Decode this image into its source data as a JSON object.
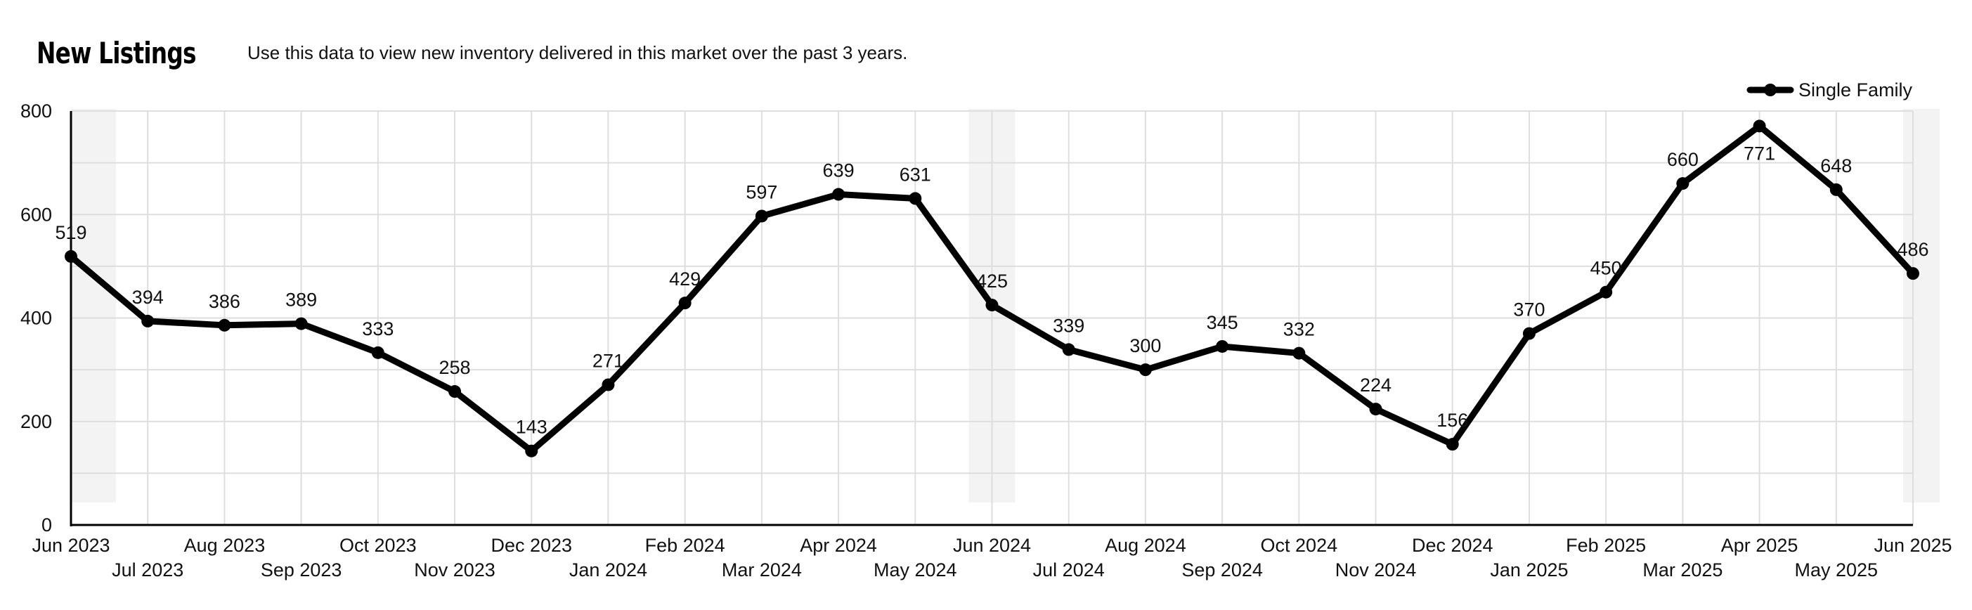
{
  "header": {
    "title": "New Listings",
    "subtitle": "Use this data to view new inventory delivered in this market over the past 3 years."
  },
  "legend": {
    "label": "Single Family"
  },
  "colors": {
    "line": "#000000",
    "grid": "#dedede",
    "highlight": "#f3f3f3"
  },
  "chart_data": {
    "type": "line",
    "title": "New Listings",
    "subtitle": "Use this data to view new inventory delivered in this market over the past 3 years.",
    "categories": [
      "Jun 2023",
      "Jul 2023",
      "Aug 2023",
      "Sep 2023",
      "Oct 2023",
      "Nov 2023",
      "Dec 2023",
      "Jan 2024",
      "Feb 2024",
      "Mar 2024",
      "Apr 2024",
      "May 2024",
      "Jun 2024",
      "Jul 2024",
      "Aug 2024",
      "Sep 2024",
      "Oct 2024",
      "Nov 2024",
      "Dec 2024",
      "Jan 2025",
      "Feb 2025",
      "Mar 2025",
      "Apr 2025",
      "May 2025",
      "Jun 2025"
    ],
    "series": [
      {
        "name": "Single Family",
        "values": [
          519,
          394,
          386,
          389,
          333,
          258,
          143,
          271,
          429,
          597,
          639,
          631,
          425,
          339,
          300,
          345,
          332,
          224,
          156,
          370,
          450,
          660,
          771,
          648,
          486
        ],
        "labels": [
          "519",
          "394",
          "386",
          "389",
          "333",
          "258",
          "143",
          "271",
          "429",
          "597",
          "639",
          "631",
          "425",
          "339",
          "300",
          "345",
          "332",
          "224",
          "156",
          "370",
          "450",
          "660",
          "771",
          "648",
          "486"
        ]
      }
    ],
    "ylim": [
      0,
      800
    ],
    "yticks": [
      0,
      200,
      400,
      600,
      800
    ],
    "highlight_categories": [
      "Jun 2023",
      "Jun 2024",
      "Jun 2025"
    ],
    "grid": true,
    "legend_position": "top-right"
  }
}
